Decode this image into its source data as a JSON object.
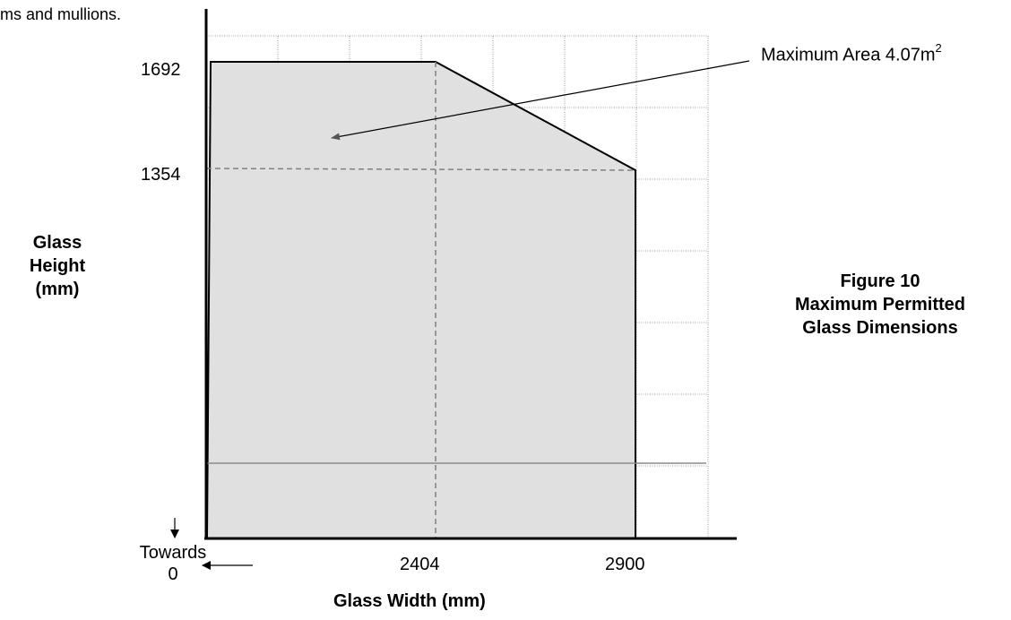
{
  "top_text": "ms and mullions.",
  "chart_data": {
    "type": "area",
    "title": "",
    "xlabel": "Glass Width (mm)",
    "ylabel_lines": [
      "Glass",
      "Height",
      "(mm)"
    ],
    "x_ticks": [
      "2404",
      "2900"
    ],
    "y_ticks": [
      "1692",
      "1354"
    ],
    "x": [
      0,
      2404,
      2900,
      2900
    ],
    "y": [
      1692,
      1692,
      1354,
      0
    ],
    "reference_points": [
      {
        "x": 2404,
        "y": 1692
      },
      {
        "x": 2900,
        "y": 1354
      }
    ],
    "grid": true,
    "annotation": {
      "text": "Maximum Area 4.07m",
      "sup": "2"
    },
    "towards_label": {
      "line1": "Towards",
      "line2": "0"
    }
  },
  "caption": {
    "line1": "Figure 10",
    "line2": "Maximum Permitted",
    "line3": "Glass Dimensions"
  },
  "colors": {
    "fill": "#e0e0e0",
    "grid": "#808080",
    "axis": "#000000",
    "dashed": "#808080",
    "hline": "#8c8c8c"
  }
}
